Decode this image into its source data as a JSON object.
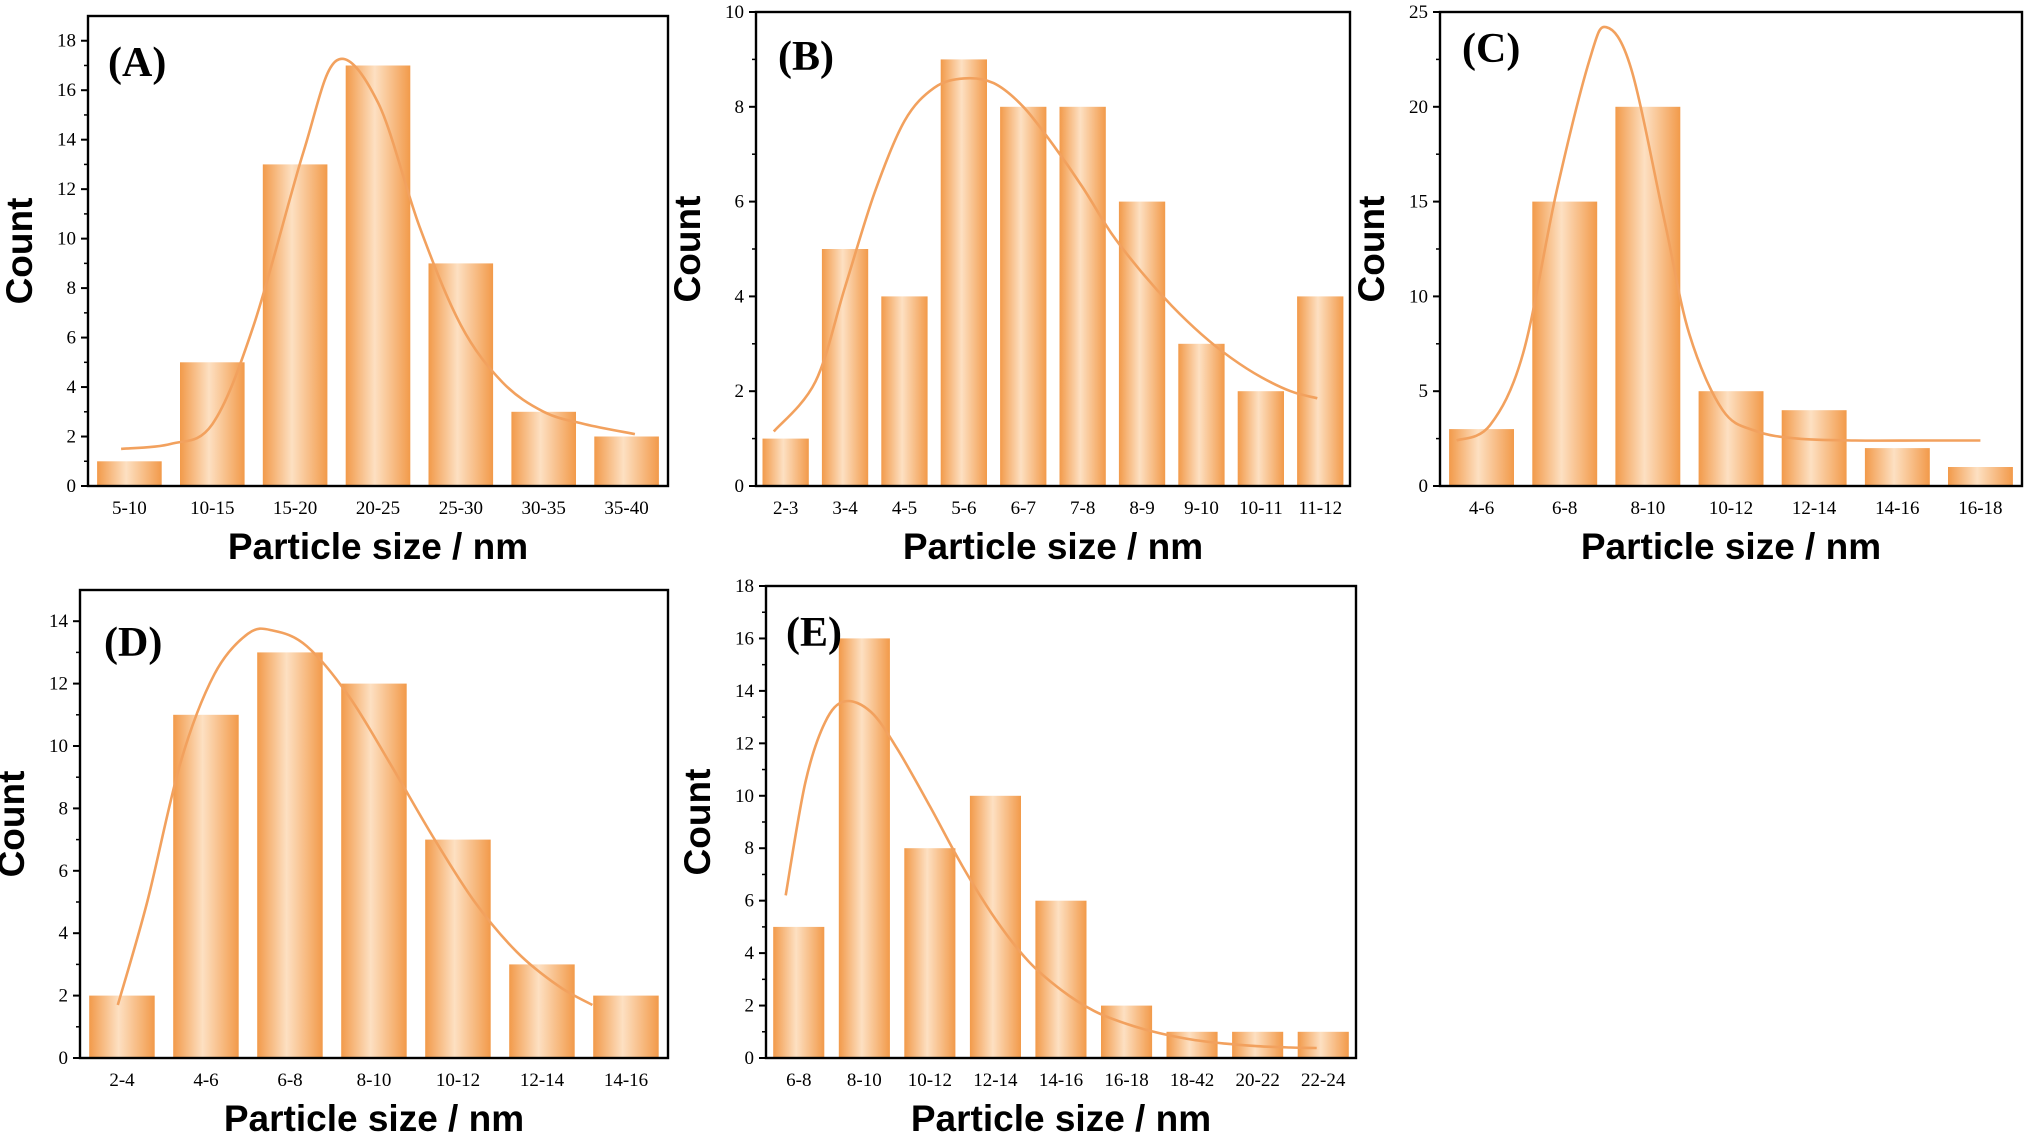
{
  "colors": {
    "bar_dark": "#F29A4A",
    "bar_light": "#FDE0C2",
    "fit_line": "#F2A15E",
    "axis": "#000000",
    "background": "#FFFFFF"
  },
  "chart_data": [
    {
      "type": "bar",
      "panel_label": "(A)",
      "xlabel": "Particle size / nm",
      "ylabel": "Count",
      "categories": [
        "5-10",
        "10-15",
        "15-20",
        "20-25",
        "25-30",
        "30-35",
        "35-40"
      ],
      "values": [
        1,
        5,
        13,
        17,
        9,
        3,
        2
      ],
      "ylim": [
        0,
        19
      ],
      "yticks": [
        0,
        2,
        4,
        6,
        8,
        10,
        12,
        14,
        16,
        18
      ],
      "fit": {
        "type": "gaussian-like",
        "points": [
          [
            0.4,
            1.5
          ],
          [
            1.0,
            1.7
          ],
          [
            1.5,
            2.5
          ],
          [
            2.0,
            6.5
          ],
          [
            2.6,
            13.5
          ],
          [
            3.0,
            17.2
          ],
          [
            3.5,
            15.5
          ],
          [
            4.0,
            10.5
          ],
          [
            4.5,
            6.5
          ],
          [
            5.0,
            4.2
          ],
          [
            5.5,
            3.0
          ],
          [
            6.0,
            2.5
          ],
          [
            6.6,
            2.1
          ]
        ]
      }
    },
    {
      "type": "bar",
      "panel_label": "(B)",
      "xlabel": "Particle size / nm",
      "ylabel": "Count",
      "categories": [
        "2-3",
        "3-4",
        "4-5",
        "5-6",
        "6-7",
        "7-8",
        "8-9",
        "9-10",
        "10-11",
        "11-12"
      ],
      "values": [
        1,
        5,
        4,
        9,
        8,
        8,
        6,
        3,
        2,
        4
      ],
      "ylim": [
        0,
        10
      ],
      "yticks": [
        0,
        2,
        4,
        6,
        8,
        10
      ],
      "fit": {
        "type": "lognormal-like",
        "points": [
          [
            0.3,
            1.15
          ],
          [
            1.0,
            2.2
          ],
          [
            1.5,
            4.2
          ],
          [
            2.0,
            6.2
          ],
          [
            2.5,
            7.7
          ],
          [
            3.0,
            8.4
          ],
          [
            3.5,
            8.6
          ],
          [
            4.0,
            8.5
          ],
          [
            4.5,
            8.0
          ],
          [
            5.0,
            7.2
          ],
          [
            5.5,
            6.3
          ],
          [
            6.0,
            5.3
          ],
          [
            6.5,
            4.5
          ],
          [
            7.0,
            3.8
          ],
          [
            7.5,
            3.2
          ],
          [
            8.0,
            2.7
          ],
          [
            8.5,
            2.3
          ],
          [
            9.0,
            2.0
          ],
          [
            9.45,
            1.85
          ]
        ]
      }
    },
    {
      "type": "bar",
      "panel_label": "(C)",
      "xlabel": "Particle size / nm",
      "ylabel": "Count",
      "categories": [
        "4-6",
        "6-8",
        "8-10",
        "10-12",
        "12-14",
        "14-16",
        "16-18"
      ],
      "values": [
        3,
        15,
        20,
        5,
        4,
        2,
        1
      ],
      "ylim": [
        0,
        25
      ],
      "yticks": [
        0,
        5,
        10,
        15,
        20,
        25
      ],
      "fit": {
        "type": "gaussian-like",
        "points": [
          [
            0.2,
            2.4
          ],
          [
            0.6,
            3.2
          ],
          [
            1.0,
            7.0
          ],
          [
            1.4,
            15.5
          ],
          [
            1.8,
            22.5
          ],
          [
            2.0,
            24.2
          ],
          [
            2.3,
            22.0
          ],
          [
            2.7,
            14.0
          ],
          [
            3.0,
            8.0
          ],
          [
            3.4,
            4.0
          ],
          [
            3.8,
            2.9
          ],
          [
            4.3,
            2.5
          ],
          [
            5.0,
            2.4
          ],
          [
            5.8,
            2.4
          ],
          [
            6.5,
            2.4
          ]
        ]
      }
    },
    {
      "type": "bar",
      "panel_label": "(D)",
      "xlabel": "Particle size / nm",
      "ylabel": "Count",
      "categories": [
        "2-4",
        "4-6",
        "6-8",
        "8-10",
        "10-12",
        "12-14",
        "14-16"
      ],
      "values": [
        2,
        11,
        13,
        12,
        7,
        3,
        2
      ],
      "ylim": [
        0,
        15
      ],
      "yticks": [
        0,
        2,
        4,
        6,
        8,
        10,
        12,
        14
      ],
      "fit": {
        "type": "lognormal-like",
        "points": [
          [
            0.45,
            1.7
          ],
          [
            0.8,
            5.0
          ],
          [
            1.2,
            9.5
          ],
          [
            1.6,
            12.3
          ],
          [
            2.0,
            13.6
          ],
          [
            2.3,
            13.7
          ],
          [
            2.7,
            13.2
          ],
          [
            3.2,
            11.6
          ],
          [
            3.7,
            9.4
          ],
          [
            4.2,
            7.1
          ],
          [
            4.7,
            5.0
          ],
          [
            5.2,
            3.4
          ],
          [
            5.7,
            2.3
          ],
          [
            6.1,
            1.7
          ]
        ]
      }
    },
    {
      "type": "bar",
      "panel_label": "(E)",
      "xlabel": "Particle size / nm",
      "ylabel": "Count",
      "categories": [
        "6-8",
        "8-10",
        "10-12",
        "12-14",
        "14-16",
        "16-18",
        "18-42",
        "20-22",
        "22-24"
      ],
      "values": [
        5,
        16,
        8,
        10,
        6,
        2,
        1,
        1,
        1
      ],
      "ylim": [
        0,
        18
      ],
      "yticks": [
        0,
        2,
        4,
        6,
        8,
        10,
        12,
        14,
        16,
        18
      ],
      "fit": {
        "type": "lognormal-like",
        "points": [
          [
            0.3,
            6.2
          ],
          [
            0.6,
            10.5
          ],
          [
            0.9,
            12.8
          ],
          [
            1.2,
            13.6
          ],
          [
            1.6,
            13.2
          ],
          [
            2.0,
            11.8
          ],
          [
            2.5,
            9.6
          ],
          [
            3.0,
            7.3
          ],
          [
            3.5,
            5.3
          ],
          [
            4.0,
            3.7
          ],
          [
            4.5,
            2.6
          ],
          [
            5.0,
            1.8
          ],
          [
            5.5,
            1.3
          ],
          [
            6.0,
            0.95
          ],
          [
            6.5,
            0.7
          ],
          [
            7.0,
            0.55
          ],
          [
            7.5,
            0.45
          ],
          [
            8.0,
            0.4
          ],
          [
            8.4,
            0.38
          ]
        ]
      }
    }
  ]
}
